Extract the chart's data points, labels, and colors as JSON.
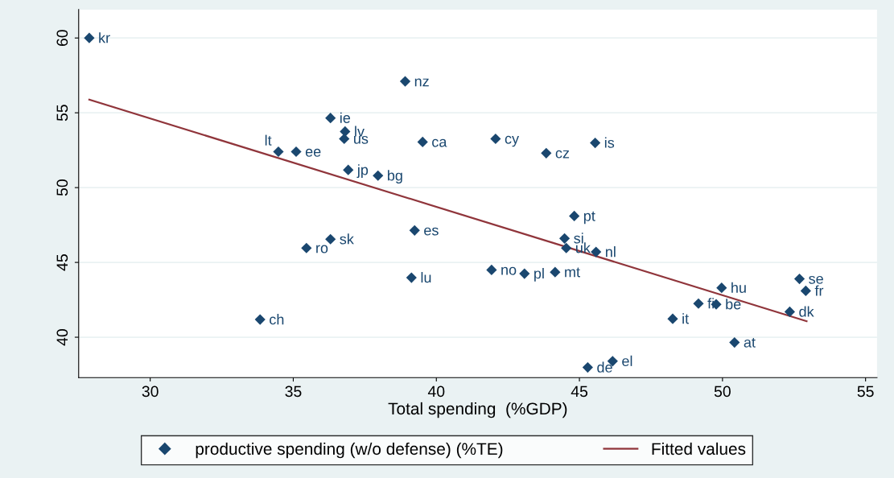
{
  "chart_data": {
    "type": "scatter",
    "xlabel": "Total spending  (%GDP)",
    "xlim": [
      27.5,
      55.4
    ],
    "ylim": [
      37.3,
      61.9
    ],
    "xticks": [
      30,
      35,
      40,
      45,
      50,
      55
    ],
    "yticks": [
      40,
      45,
      50,
      55,
      60
    ],
    "grid": "y",
    "legend": "bottom",
    "series": [
      {
        "name": "productive spending (w/o defense) (%TE)",
        "color": "#1a476f",
        "marker": "diamond",
        "x": [
          27.87,
          38.91,
          36.3,
          36.81,
          36.78,
          34.48,
          35.1,
          39.52,
          42.07,
          43.84,
          45.55,
          36.92,
          37.96,
          44.82,
          36.3,
          35.46,
          39.24,
          44.48,
          44.54,
          45.58,
          41.93,
          43.08,
          44.15,
          39.13,
          49.97,
          52.69,
          52.91,
          49.16,
          49.78,
          52.35,
          33.84,
          48.26,
          50.42,
          46.16,
          45.29
        ],
        "values": [
          60.0,
          57.1,
          54.65,
          53.75,
          53.26,
          52.4,
          52.4,
          53.05,
          53.26,
          52.3,
          52.99,
          51.18,
          50.8,
          48.1,
          46.55,
          45.96,
          47.14,
          46.6,
          45.96,
          45.7,
          44.5,
          44.25,
          44.35,
          43.98,
          43.3,
          43.9,
          43.1,
          42.25,
          42.2,
          41.7,
          41.18,
          41.23,
          39.65,
          38.4,
          37.98
        ],
        "value_labels": [
          "kr",
          "nz",
          "ie",
          "lv",
          "us",
          "lt",
          "ee",
          "ca",
          "cy",
          "cz",
          "is",
          "jp",
          "bg",
          "pt",
          "sk",
          "ro",
          "es",
          "si",
          "uk",
          "nl",
          "no",
          "pl",
          "mt",
          "lu",
          "hu",
          "se",
          "fr",
          "fi",
          "be",
          "dk",
          "ch",
          "it",
          "at",
          "el",
          "de"
        ]
      },
      {
        "name": "Fitted values",
        "color": "#90353b",
        "type": "line",
        "x": [
          27.87,
          52.94
        ],
        "values": [
          55.88,
          41.07
        ]
      }
    ]
  }
}
